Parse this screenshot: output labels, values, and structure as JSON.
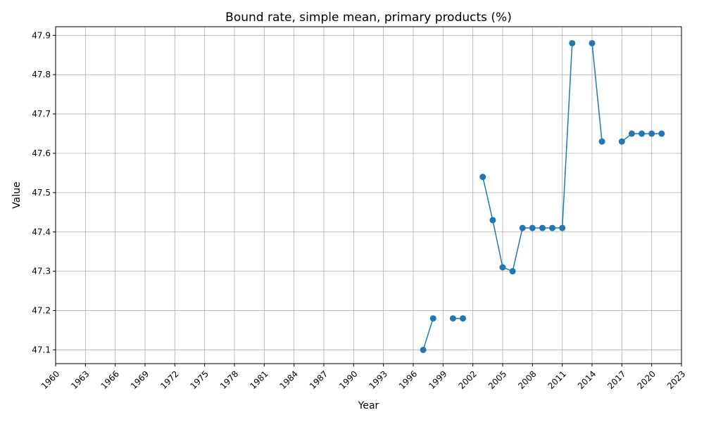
{
  "chart_data": {
    "type": "line",
    "title": "Bound rate, simple mean, primary products (%)",
    "xlabel": "Year",
    "ylabel": "Value",
    "xlim": [
      1960,
      2023
    ],
    "ylim": [
      47.065,
      47.922
    ],
    "grid": true,
    "line_color": "#1f77b4",
    "x_ticks": [
      1960,
      1963,
      1966,
      1969,
      1972,
      1975,
      1978,
      1981,
      1984,
      1987,
      1990,
      1993,
      1996,
      1999,
      2002,
      2005,
      2008,
      2011,
      2014,
      2017,
      2020,
      2023
    ],
    "y_ticks": [
      47.1,
      47.2,
      47.3,
      47.4,
      47.5,
      47.6,
      47.7,
      47.8,
      47.9
    ],
    "y_tick_labels": [
      "47.1",
      "47.2",
      "47.3",
      "47.4",
      "47.5",
      "47.6",
      "47.7",
      "47.8",
      "47.9"
    ],
    "series": [
      {
        "x": [
          1997,
          1998,
          1999,
          2000,
          2001,
          2002,
          2003,
          2004,
          2005,
          2006,
          2007,
          2008,
          2009,
          2010,
          2011,
          2012,
          2013,
          2014,
          2015,
          2016,
          2017,
          2018,
          2019,
          2020,
          2021
        ],
        "values": [
          47.1,
          47.18,
          null,
          47.18,
          47.18,
          null,
          47.54,
          47.43,
          47.31,
          47.3,
          47.41,
          47.41,
          47.41,
          47.41,
          47.41,
          47.88,
          null,
          47.88,
          47.63,
          null,
          47.63,
          47.65,
          47.65,
          47.65,
          47.65
        ]
      }
    ]
  }
}
